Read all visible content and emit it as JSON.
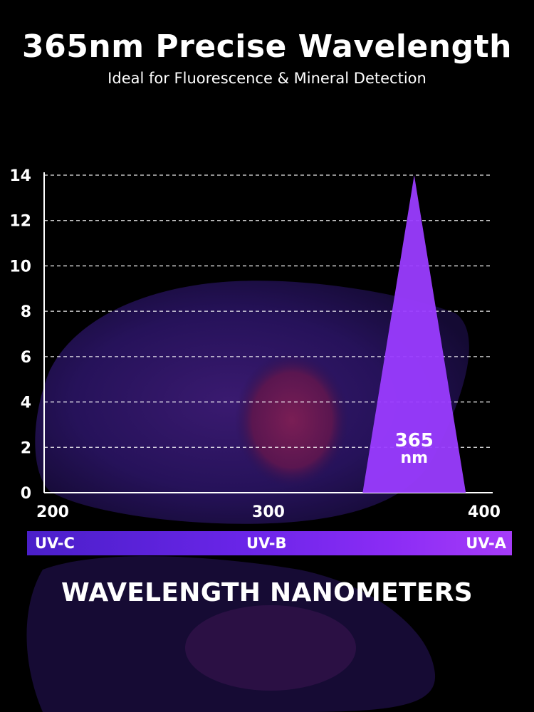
{
  "header": {
    "title": "365nm Precise Wavelength",
    "subtitle": "Ideal for Fluorescence & Mineral Detection"
  },
  "bands": [
    "UV-C",
    "UV-B",
    "UV-A"
  ],
  "colors": {
    "background": "#000000",
    "peak": "#9a3cff",
    "band_start": "#4a1fc9",
    "band_end": "#a63cf8",
    "text": "#ffffff"
  },
  "chart_data": {
    "type": "area",
    "title": "",
    "xlabel": "WAVELENGTH NANOMETERS",
    "ylabel": "",
    "xlim": [
      200,
      400
    ],
    "ylim": [
      0,
      14
    ],
    "x_ticks": [
      200,
      300,
      400
    ],
    "y_ticks": [
      0,
      2,
      4,
      6,
      8,
      10,
      12,
      14
    ],
    "grid": "horizontal dashed",
    "series": [
      {
        "x": [
          342,
          365,
          388
        ],
        "y": [
          0,
          14,
          0
        ]
      }
    ],
    "annotation": {
      "line1": "365",
      "line2": "nm",
      "x": 365
    }
  }
}
